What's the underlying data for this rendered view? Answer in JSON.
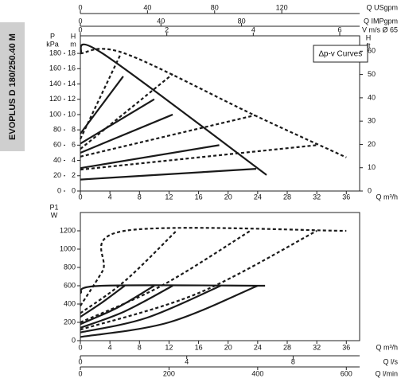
{
  "side_label": "EVOPLUS D 180/250.40 M",
  "chart_data": [
    {
      "type": "line",
      "legend_box": "∆p-v Curves",
      "y_label": [
        "H",
        "m"
      ],
      "ylim": [
        0,
        20.3
      ],
      "yticks": [
        0,
        2,
        4,
        6,
        8,
        10,
        12,
        14,
        16,
        18
      ],
      "kpa_label": [
        "P",
        "kPa"
      ],
      "kpa_lim": [
        0,
        203
      ],
      "kpa_ticks": [
        0,
        20,
        40,
        60,
        80,
        100,
        120,
        140,
        160,
        180
      ],
      "ft_label": [
        "H",
        "ft"
      ],
      "ft_lim": [
        0,
        66.6
      ],
      "ft_ticks": [
        0,
        10,
        20,
        30,
        40,
        50,
        60
      ],
      "x_label": "Q m³/h",
      "xlim": [
        0,
        37.8
      ],
      "xticks": [
        0,
        4,
        8,
        12,
        16,
        20,
        24,
        28,
        32,
        36
      ],
      "extra_x_axes": [
        {
          "label": "Q USgpm",
          "lim": [
            0,
            166.4
          ],
          "ticks": [
            0,
            40,
            80,
            120
          ]
        },
        {
          "label": "Q IMPgpm",
          "lim": [
            0,
            138.6
          ],
          "ticks": [
            0,
            40,
            80
          ]
        },
        {
          "label": "V m/s Ø 65",
          "lim": [
            0,
            6.46
          ],
          "ticks": [
            0,
            2,
            4,
            6
          ]
        }
      ],
      "series": [
        {
          "style": "solid",
          "color": "#1a1a1a",
          "x": [
            0,
            3,
            25.2
          ],
          "values": [
            18,
            18,
            2.1
          ]
        },
        {
          "style": "solid",
          "color": "#1a1a1a",
          "x": [
            0,
            5.8
          ],
          "values": [
            7.5,
            15
          ]
        },
        {
          "style": "solid",
          "color": "#1a1a1a",
          "x": [
            0,
            10
          ],
          "values": [
            6.2,
            12
          ]
        },
        {
          "style": "solid",
          "color": "#1a1a1a",
          "x": [
            0,
            12.5
          ],
          "values": [
            5,
            10
          ]
        },
        {
          "style": "solid",
          "color": "#1a1a1a",
          "x": [
            0,
            18.8
          ],
          "values": [
            3,
            6
          ]
        },
        {
          "style": "solid",
          "color": "#1a1a1a",
          "x": [
            0,
            23.8
          ],
          "values": [
            1.5,
            2.9
          ]
        },
        {
          "style": "dashed",
          "color": "#1a1a1a",
          "x": [
            0,
            6,
            23.6,
            36
          ],
          "values": [
            18,
            18,
            9.9,
            4.4
          ]
        },
        {
          "style": "dashed",
          "color": "#1a1a1a",
          "x": [
            0,
            5.5
          ],
          "values": [
            6.8,
            18
          ]
        },
        {
          "style": "dashed",
          "color": "#1a1a1a",
          "x": [
            0,
            12.5
          ],
          "values": [
            5.5,
            15.3
          ]
        },
        {
          "style": "dashed",
          "color": "#1a1a1a",
          "x": [
            0,
            23.6
          ],
          "values": [
            4.5,
            9.9
          ]
        },
        {
          "style": "dashed",
          "color": "#1a1a1a",
          "x": [
            0,
            32
          ],
          "values": [
            2.8,
            6
          ]
        }
      ]
    },
    {
      "type": "line",
      "y_label": [
        "P1",
        "W"
      ],
      "ylim": [
        0,
        1400
      ],
      "yticks": [
        0,
        200,
        400,
        600,
        800,
        1000,
        1200
      ],
      "x_label": "Q m³/h",
      "xlim": [
        0,
        37.8
      ],
      "xticks": [
        0,
        4,
        8,
        12,
        16,
        20,
        24,
        28,
        32,
        36
      ],
      "bottom_axes": [
        {
          "label": "Q l/s",
          "lim": [
            0,
            10.5
          ],
          "ticks": [
            0,
            4,
            8
          ]
        },
        {
          "label": "Q l/min",
          "lim": [
            0,
            630
          ],
          "ticks": [
            0,
            200,
            400,
            600
          ]
        }
      ],
      "series": [
        {
          "style": "solid",
          "color": "#1a1a1a",
          "x": [
            0,
            3,
            25
          ],
          "values": [
            520,
            600,
            600
          ]
        },
        {
          "style": "solid",
          "color": "#1a1a1a",
          "x": [
            0,
            3,
            6
          ],
          "values": [
            260,
            420,
            600
          ]
        },
        {
          "style": "solid",
          "color": "#1a1a1a",
          "x": [
            0,
            5,
            10
          ],
          "values": [
            180,
            360,
            600
          ]
        },
        {
          "style": "solid",
          "color": "#1a1a1a",
          "x": [
            0,
            6,
            12.5
          ],
          "values": [
            140,
            320,
            600
          ]
        },
        {
          "style": "solid",
          "color": "#1a1a1a",
          "x": [
            0,
            9,
            19
          ],
          "values": [
            90,
            250,
            600
          ]
        },
        {
          "style": "solid",
          "color": "#1a1a1a",
          "x": [
            0,
            12,
            24
          ],
          "values": [
            40,
            200,
            600
          ]
        },
        {
          "style": "dashed",
          "color": "#1a1a1a",
          "x": [
            0,
            3,
            6,
            36
          ],
          "values": [
            380,
            760,
            1200,
            1200
          ]
        },
        {
          "style": "dashed",
          "color": "#1a1a1a",
          "x": [
            0,
            6,
            13
          ],
          "values": [
            300,
            650,
            1200
          ]
        },
        {
          "style": "dashed",
          "color": "#1a1a1a",
          "x": [
            0,
            11,
            23
          ],
          "values": [
            200,
            600,
            1200
          ]
        },
        {
          "style": "dashed",
          "color": "#1a1a1a",
          "x": [
            0,
            16,
            32
          ],
          "values": [
            120,
            520,
            1200
          ]
        }
      ]
    }
  ]
}
